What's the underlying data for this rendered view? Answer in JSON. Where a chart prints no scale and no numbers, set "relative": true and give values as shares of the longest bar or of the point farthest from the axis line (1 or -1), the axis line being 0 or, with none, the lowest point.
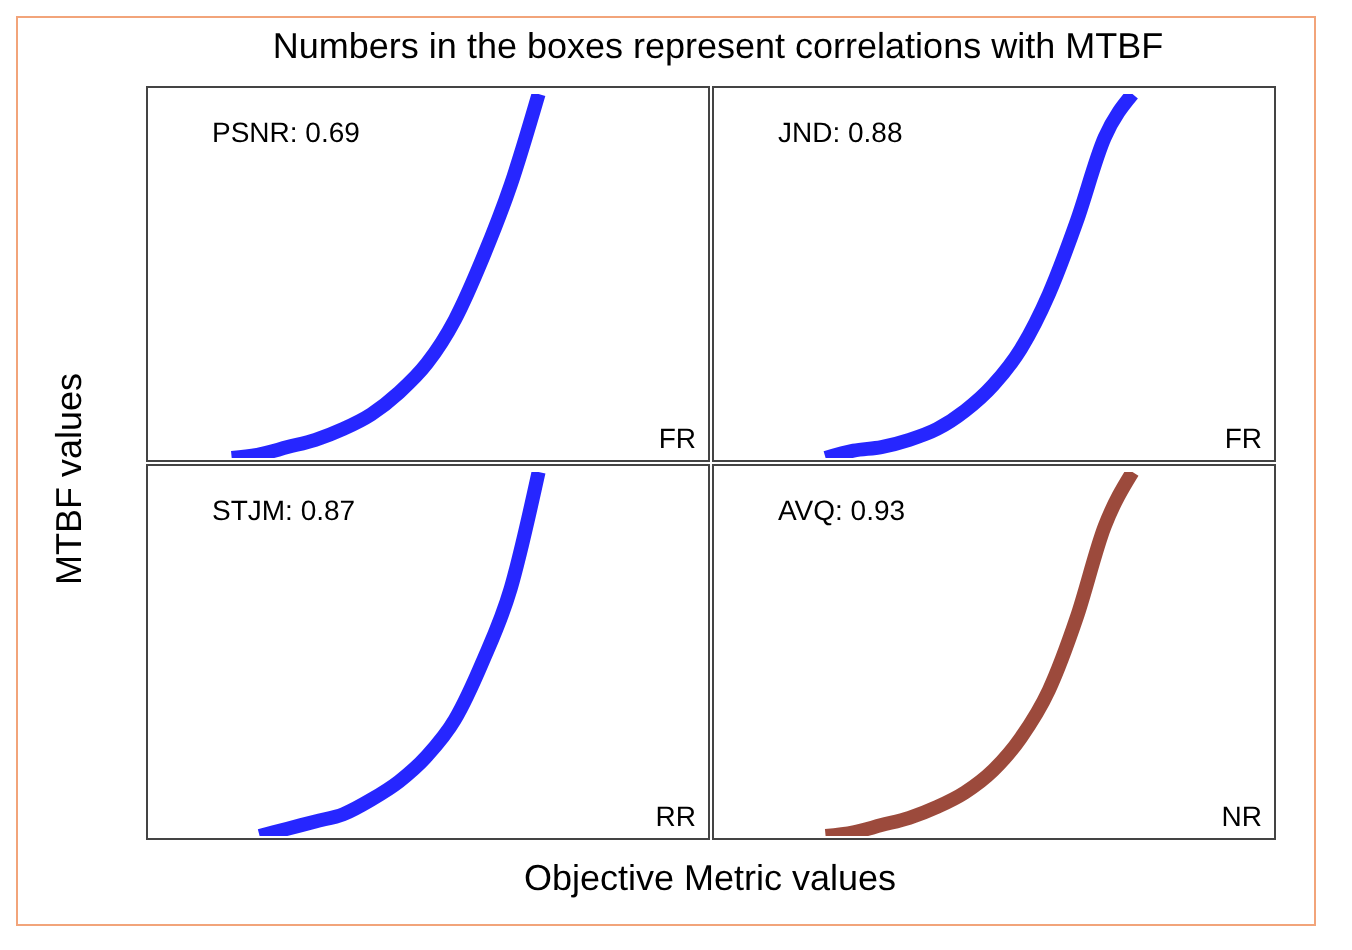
{
  "chart_data": [
    {
      "type": "line",
      "title": "Numbers in the boxes represent correlations with MTBF",
      "relative": true,
      "categories": [
        null,
        null,
        null,
        null,
        null,
        null,
        null,
        null,
        null,
        null,
        null,
        null,
        null,
        null,
        null,
        null,
        null,
        null,
        null,
        null,
        null
      ],
      "annotations": [
        "PSNR: 0.69",
        "FR"
      ],
      "series": [
        {
          "color": "#0000ff",
          "values": [
            null,
            null,
            null,
            0.0,
            0.01,
            0.03,
            0.05,
            0.08,
            0.12,
            0.18,
            0.26,
            0.38,
            0.55,
            0.75,
            1.0,
            null,
            null,
            null,
            null,
            null,
            null
          ]
        }
      ]
    },
    {
      "type": "line",
      "relative": true,
      "categories": [
        null,
        null,
        null,
        null,
        null,
        null,
        null,
        null,
        null,
        null,
        null,
        null,
        null,
        null,
        null,
        null,
        null,
        null,
        null,
        null,
        null
      ],
      "annotations": [
        "JND: 0.88",
        "FR"
      ],
      "series": [
        {
          "color": "#0000ff",
          "values": [
            null,
            null,
            null,
            null,
            0.0,
            0.02,
            0.03,
            0.05,
            0.08,
            0.13,
            0.2,
            0.3,
            0.45,
            0.65,
            0.88,
            1.0,
            null,
            null,
            null,
            null,
            null
          ]
        }
      ]
    },
    {
      "type": "line",
      "ylabel": "MTBF values",
      "xlabel": "Objective Metric values",
      "relative": true,
      "categories": [
        null,
        null,
        null,
        null,
        null,
        null,
        null,
        null,
        null,
        null,
        null,
        null,
        null,
        null,
        null,
        null,
        null,
        null,
        null,
        null,
        null
      ],
      "annotations": [
        "STJM: 0.87",
        "RR"
      ],
      "series": [
        {
          "color": "#0000ff",
          "values": [
            null,
            null,
            null,
            null,
            0.0,
            0.02,
            0.04,
            0.06,
            0.1,
            0.15,
            0.22,
            0.32,
            0.48,
            0.68,
            1.0,
            null,
            null,
            null,
            null,
            null,
            null
          ]
        }
      ]
    },
    {
      "type": "line",
      "relative": true,
      "categories": [
        null,
        null,
        null,
        null,
        null,
        null,
        null,
        null,
        null,
        null,
        null,
        null,
        null,
        null,
        null,
        null,
        null,
        null,
        null,
        null,
        null
      ],
      "annotations": [
        "AVQ: 0.93",
        "NR"
      ],
      "series": [
        {
          "color": "#8b2a1a",
          "values": [
            null,
            null,
            null,
            null,
            0.0,
            0.01,
            0.03,
            0.05,
            0.08,
            0.12,
            0.18,
            0.27,
            0.4,
            0.6,
            0.85,
            1.0,
            null,
            null,
            null,
            null,
            null
          ]
        }
      ]
    }
  ]
}
